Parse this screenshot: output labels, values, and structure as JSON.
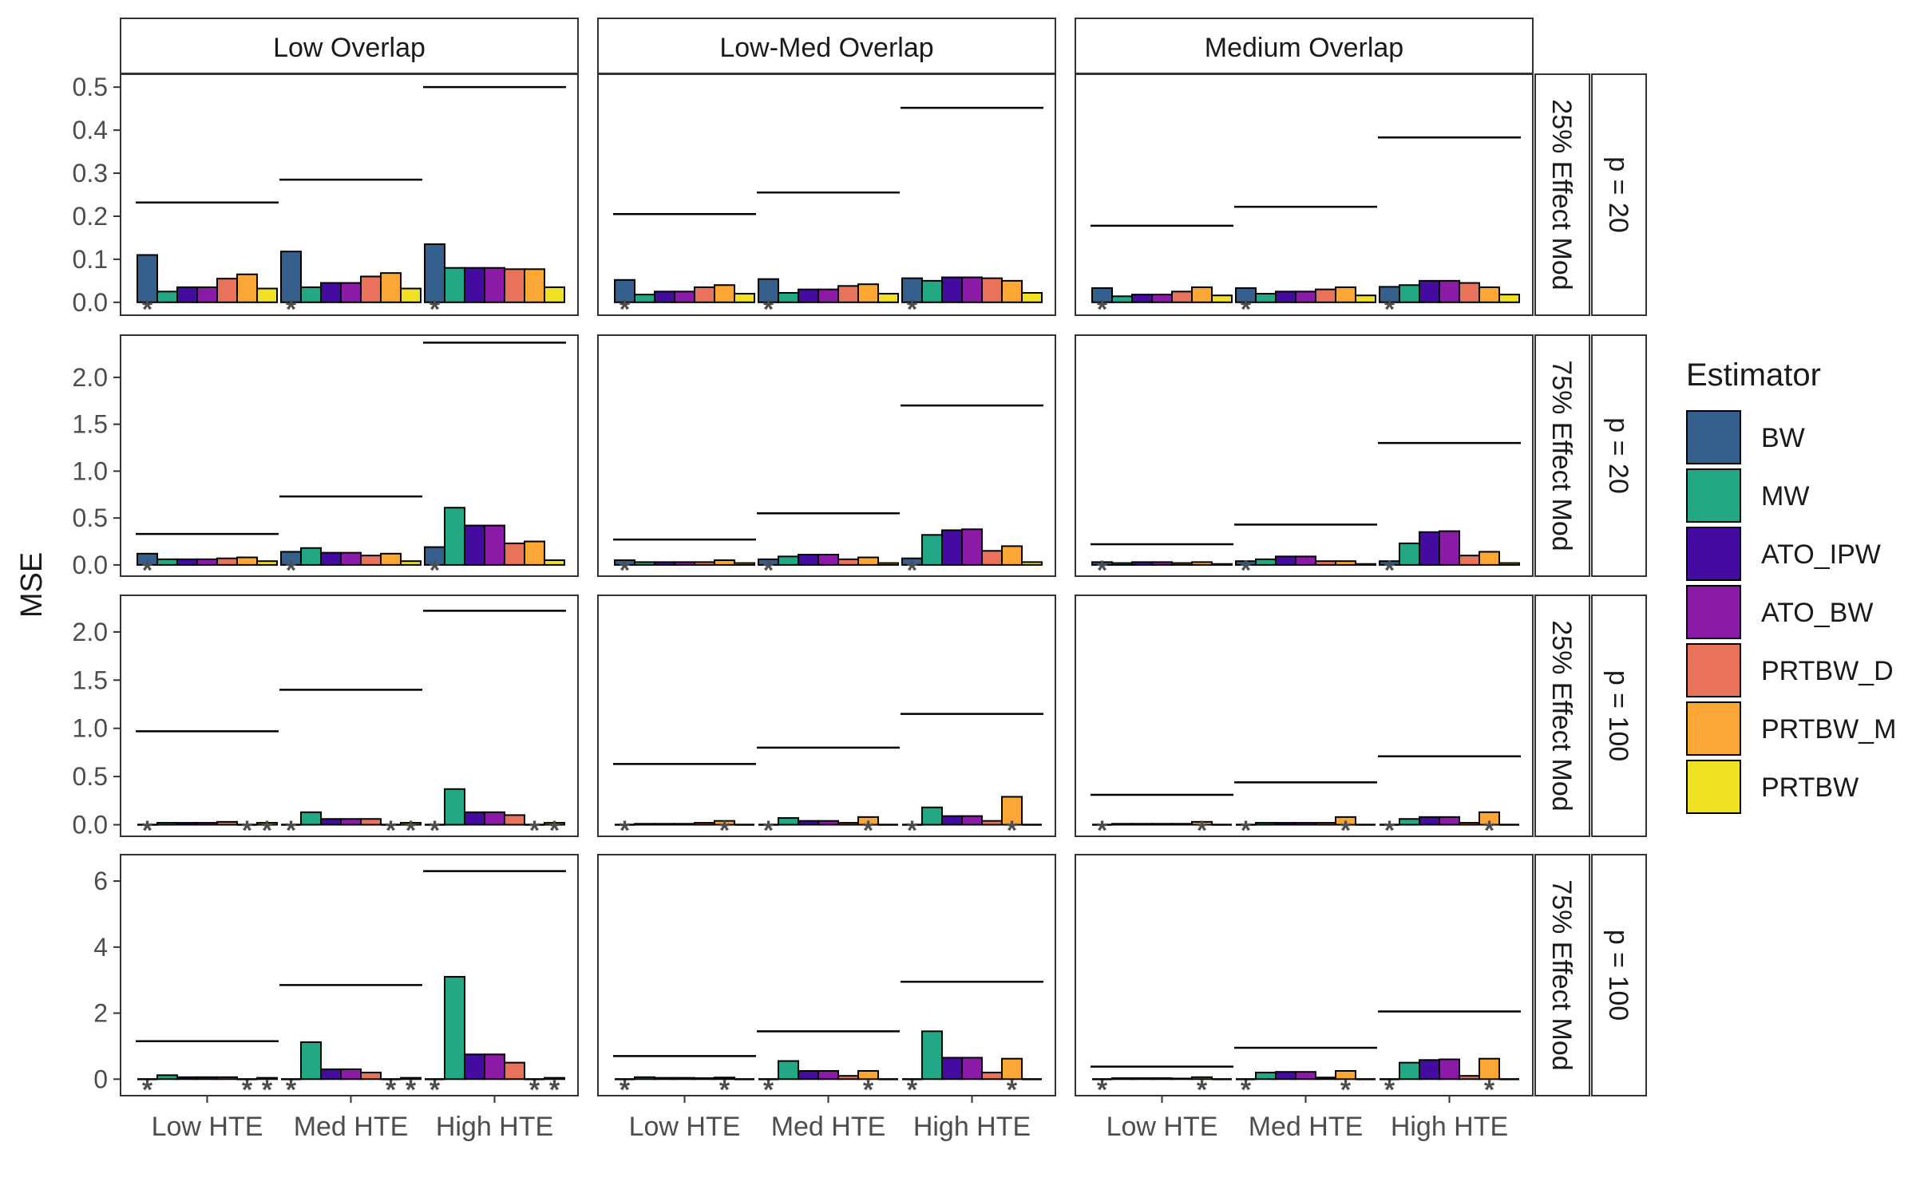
{
  "chart_data": {
    "type": "bar",
    "ylabel": "MSE",
    "legend": {
      "title": "Estimator",
      "position": "right"
    },
    "grid": false,
    "series_colors": {
      "BW": "#355F8D",
      "MW": "#22A884",
      "ATO_IPW": "#440BA0",
      "ATO_BW": "#8B1BA6",
      "PRTBW_D": "#E8735A",
      "PRTBW_M": "#FCA636",
      "PRTBW": "#F0E223"
    },
    "estimators": [
      "BW",
      "MW",
      "ATO_IPW",
      "ATO_BW",
      "PRTBW_D",
      "PRTBW_M",
      "PRTBW"
    ],
    "columns": [
      "Low Overlap",
      "Low-Med Overlap",
      "Medium Overlap"
    ],
    "categories": [
      "Low HTE",
      "Med HTE",
      "High HTE"
    ],
    "rows": [
      {
        "strip_effect": "25% Effect Mod",
        "strip_p": "p = 20",
        "ylim": [
          -0.03,
          0.53
        ],
        "yticks": [
          0,
          0.1,
          0.2,
          0.3,
          0.4,
          0.5
        ],
        "ytick_labels": [
          "0.0",
          "0.1",
          "0.2",
          "0.3",
          "0.4",
          "0.5"
        ],
        "panels": [
          {
            "column": "Low Overlap",
            "values": [
              [
                0.11,
                0.025,
                0.035,
                0.035,
                0.055,
                0.065,
                0.032
              ],
              [
                0.118,
                0.035,
                0.045,
                0.045,
                0.06,
                0.068,
                0.032
              ],
              [
                0.135,
                0.08,
                0.08,
                0.08,
                0.077,
                0.077,
                0.035
              ]
            ],
            "reference": [
              0.232,
              0.285,
              0.5
            ],
            "stars": [
              [
                0
              ],
              [
                0
              ],
              [
                0
              ]
            ]
          },
          {
            "column": "Low-Med Overlap",
            "values": [
              [
                0.052,
                0.018,
                0.025,
                0.025,
                0.035,
                0.04,
                0.02
              ],
              [
                0.054,
                0.022,
                0.03,
                0.03,
                0.038,
                0.042,
                0.02
              ],
              [
                0.056,
                0.05,
                0.058,
                0.058,
                0.056,
                0.05,
                0.022
              ]
            ],
            "reference": [
              0.205,
              0.255,
              0.452
            ],
            "stars": [
              [
                0
              ],
              [
                0
              ],
              [
                0
              ]
            ]
          },
          {
            "column": "Medium Overlap",
            "values": [
              [
                0.033,
                0.014,
                0.018,
                0.018,
                0.025,
                0.035,
                0.016
              ],
              [
                0.033,
                0.02,
                0.025,
                0.025,
                0.03,
                0.035,
                0.016
              ],
              [
                0.036,
                0.04,
                0.05,
                0.05,
                0.045,
                0.035,
                0.018
              ]
            ],
            "reference": [
              0.178,
              0.222,
              0.383
            ],
            "stars": [
              [
                0
              ],
              [
                0
              ],
              [
                0
              ]
            ]
          }
        ]
      },
      {
        "strip_effect": "75% Effect Mod",
        "strip_p": "p = 20",
        "ylim": [
          -0.12,
          2.45
        ],
        "yticks": [
          0,
          0.5,
          1,
          1.5,
          2
        ],
        "ytick_labels": [
          "0.0",
          "0.5",
          "1.0",
          "1.5",
          "2.0"
        ],
        "panels": [
          {
            "column": "Low Overlap",
            "values": [
              [
                0.12,
                0.06,
                0.06,
                0.06,
                0.07,
                0.08,
                0.04
              ],
              [
                0.14,
                0.18,
                0.13,
                0.13,
                0.1,
                0.12,
                0.04
              ],
              [
                0.19,
                0.61,
                0.42,
                0.42,
                0.23,
                0.25,
                0.05
              ]
            ],
            "reference": [
              0.33,
              0.73,
              2.37
            ],
            "stars": [
              [
                0
              ],
              [
                0
              ],
              [
                0
              ]
            ]
          },
          {
            "column": "Low-Med Overlap",
            "values": [
              [
                0.05,
                0.03,
                0.03,
                0.03,
                0.03,
                0.05,
                0.02
              ],
              [
                0.06,
                0.09,
                0.11,
                0.11,
                0.06,
                0.08,
                0.02
              ],
              [
                0.07,
                0.32,
                0.37,
                0.38,
                0.15,
                0.2,
                0.03
              ]
            ],
            "reference": [
              0.27,
              0.55,
              1.7
            ],
            "stars": [
              [
                0
              ],
              [
                0
              ],
              [
                0
              ]
            ]
          },
          {
            "column": "Medium Overlap",
            "values": [
              [
                0.03,
                0.02,
                0.03,
                0.03,
                0.02,
                0.03,
                0.01
              ],
              [
                0.04,
                0.06,
                0.09,
                0.09,
                0.04,
                0.04,
                0.01
              ],
              [
                0.04,
                0.23,
                0.35,
                0.36,
                0.1,
                0.14,
                0.02
              ]
            ],
            "reference": [
              0.22,
              0.43,
              1.3
            ],
            "stars": [
              [
                0
              ],
              [
                0
              ],
              [
                0
              ]
            ]
          }
        ]
      },
      {
        "strip_effect": "25% Effect Mod",
        "strip_p": "p = 100",
        "ylim": [
          -0.12,
          2.38
        ],
        "yticks": [
          0,
          0.5,
          1,
          1.5,
          2
        ],
        "ytick_labels": [
          "0.0",
          "0.5",
          "1.0",
          "1.5",
          "2.0"
        ],
        "panels": [
          {
            "column": "Low Overlap",
            "values": [
              [
                0,
                0.02,
                0.02,
                0.02,
                0.03,
                0,
                0.02
              ],
              [
                0,
                0.13,
                0.06,
                0.06,
                0.06,
                0,
                0.02
              ],
              [
                0,
                0.37,
                0.13,
                0.13,
                0.1,
                0,
                0.02
              ]
            ],
            "reference": [
              0.97,
              1.4,
              2.22
            ],
            "stars": [
              [
                0,
                5,
                6
              ],
              [
                0,
                5,
                6
              ],
              [
                0,
                5,
                6
              ]
            ]
          },
          {
            "column": "Low-Med Overlap",
            "values": [
              [
                0,
                0.01,
                0.01,
                0.01,
                0.02,
                0.04,
                0
              ],
              [
                0,
                0.07,
                0.04,
                0.04,
                0.02,
                0.08,
                0
              ],
              [
                0,
                0.18,
                0.09,
                0.09,
                0.04,
                0.29,
                0
              ]
            ],
            "reference": [
              0.63,
              0.8,
              1.15
            ],
            "stars": [
              [
                0,
                5
              ],
              [
                0,
                5
              ],
              [
                0,
                5
              ]
            ]
          },
          {
            "column": "Medium Overlap",
            "values": [
              [
                0,
                0.01,
                0.01,
                0.01,
                0.01,
                0.03,
                0
              ],
              [
                0,
                0.02,
                0.02,
                0.02,
                0.02,
                0.08,
                0
              ],
              [
                0,
                0.06,
                0.08,
                0.08,
                0.02,
                0.13,
                0
              ]
            ],
            "reference": [
              0.31,
              0.44,
              0.71
            ],
            "stars": [
              [
                0,
                5
              ],
              [
                0,
                5
              ],
              [
                0,
                5
              ]
            ]
          }
        ]
      },
      {
        "strip_effect": "75% Effect Mod",
        "strip_p": "p = 100",
        "ylim": [
          -0.5,
          6.8
        ],
        "yticks": [
          0,
          2,
          4,
          6
        ],
        "ytick_labels": [
          "0",
          "2",
          "4",
          "6"
        ],
        "panels": [
          {
            "column": "Low Overlap",
            "values": [
              [
                0,
                0.12,
                0.06,
                0.06,
                0.06,
                0,
                0.04
              ],
              [
                0,
                1.12,
                0.3,
                0.3,
                0.2,
                0,
                0.04
              ],
              [
                0,
                3.1,
                0.75,
                0.75,
                0.5,
                0,
                0.04
              ]
            ],
            "reference": [
              1.15,
              2.85,
              6.3
            ],
            "stars": [
              [
                0,
                5,
                6
              ],
              [
                0,
                5,
                6
              ],
              [
                0,
                5,
                6
              ]
            ]
          },
          {
            "column": "Low-Med Overlap",
            "values": [
              [
                0,
                0.06,
                0.04,
                0.04,
                0.03,
                0.05,
                0
              ],
              [
                0,
                0.55,
                0.25,
                0.25,
                0.1,
                0.25,
                0
              ],
              [
                0,
                1.45,
                0.65,
                0.65,
                0.2,
                0.62,
                0
              ]
            ],
            "reference": [
              0.7,
              1.45,
              2.95
            ],
            "stars": [
              [
                0,
                5
              ],
              [
                0,
                5
              ],
              [
                0,
                5
              ]
            ]
          },
          {
            "column": "Medium Overlap",
            "values": [
              [
                0,
                0.03,
                0.03,
                0.03,
                0.02,
                0.06,
                0
              ],
              [
                0,
                0.2,
                0.22,
                0.22,
                0.05,
                0.25,
                0
              ],
              [
                0,
                0.5,
                0.58,
                0.6,
                0.1,
                0.62,
                0
              ]
            ],
            "reference": [
              0.38,
              0.95,
              2.05
            ],
            "stars": [
              [
                0,
                5
              ],
              [
                0,
                5
              ],
              [
                0,
                5
              ]
            ]
          }
        ]
      }
    ]
  }
}
